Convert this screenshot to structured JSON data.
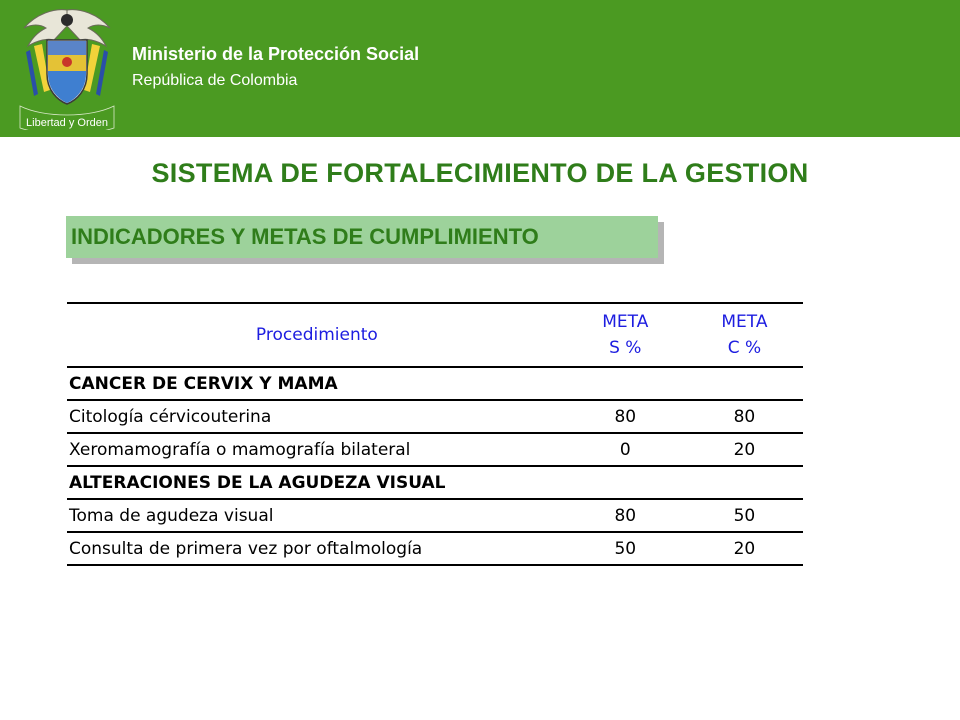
{
  "header": {
    "ministry": "Ministerio de la Protección Social",
    "country": "República de Colombia",
    "motto": "Libertad y Orden",
    "background": "#4b9a22"
  },
  "title": "SISTEMA DE FORTALECIMIENTO DE LA GESTION",
  "subtitle": "INDICADORES Y METAS DE CUMPLIMIENTO",
  "table": {
    "columns": [
      "Procedimiento",
      "META",
      "S %",
      "META",
      "C %"
    ],
    "rows": [
      {
        "type": "section",
        "label": "CANCER DE CERVIX Y MAMA",
        "s": "",
        "c": ""
      },
      {
        "type": "item",
        "label": "Citología cérvicouterina",
        "s": "80",
        "c": "80"
      },
      {
        "type": "item",
        "label": "Xeromamografía o mamografía bilateral",
        "s": "0",
        "c": "20"
      },
      {
        "type": "section",
        "label": "ALTERACIONES DE LA AGUDEZA VISUAL",
        "s": "",
        "c": ""
      },
      {
        "type": "item",
        "label": "Toma de agudeza visual",
        "s": "80",
        "c": "50"
      },
      {
        "type": "item",
        "label": "Consulta de primera vez por oftalmología",
        "s": "50",
        "c": "20"
      }
    ]
  }
}
